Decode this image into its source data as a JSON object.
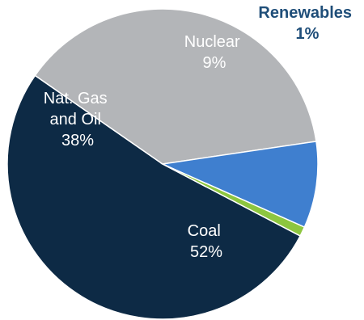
{
  "chart_data": {
    "type": "pie",
    "slices": [
      {
        "label": "Coal",
        "value_text": "52%",
        "value": 52,
        "color": "#0d2a45"
      },
      {
        "label": "Nat. Gas and Oil",
        "value_text": "38%",
        "value": 38,
        "color": "#b3b5b8"
      },
      {
        "label": "Nuclear",
        "value_text": "9%",
        "value": 9,
        "color": "#3f7fcf"
      },
      {
        "label": "Renewables",
        "value_text": "1%",
        "value": 1,
        "color": "#8dc63f"
      }
    ],
    "label_colors": {
      "inside": "#ffffff",
      "outside": "#1f4e79"
    }
  }
}
